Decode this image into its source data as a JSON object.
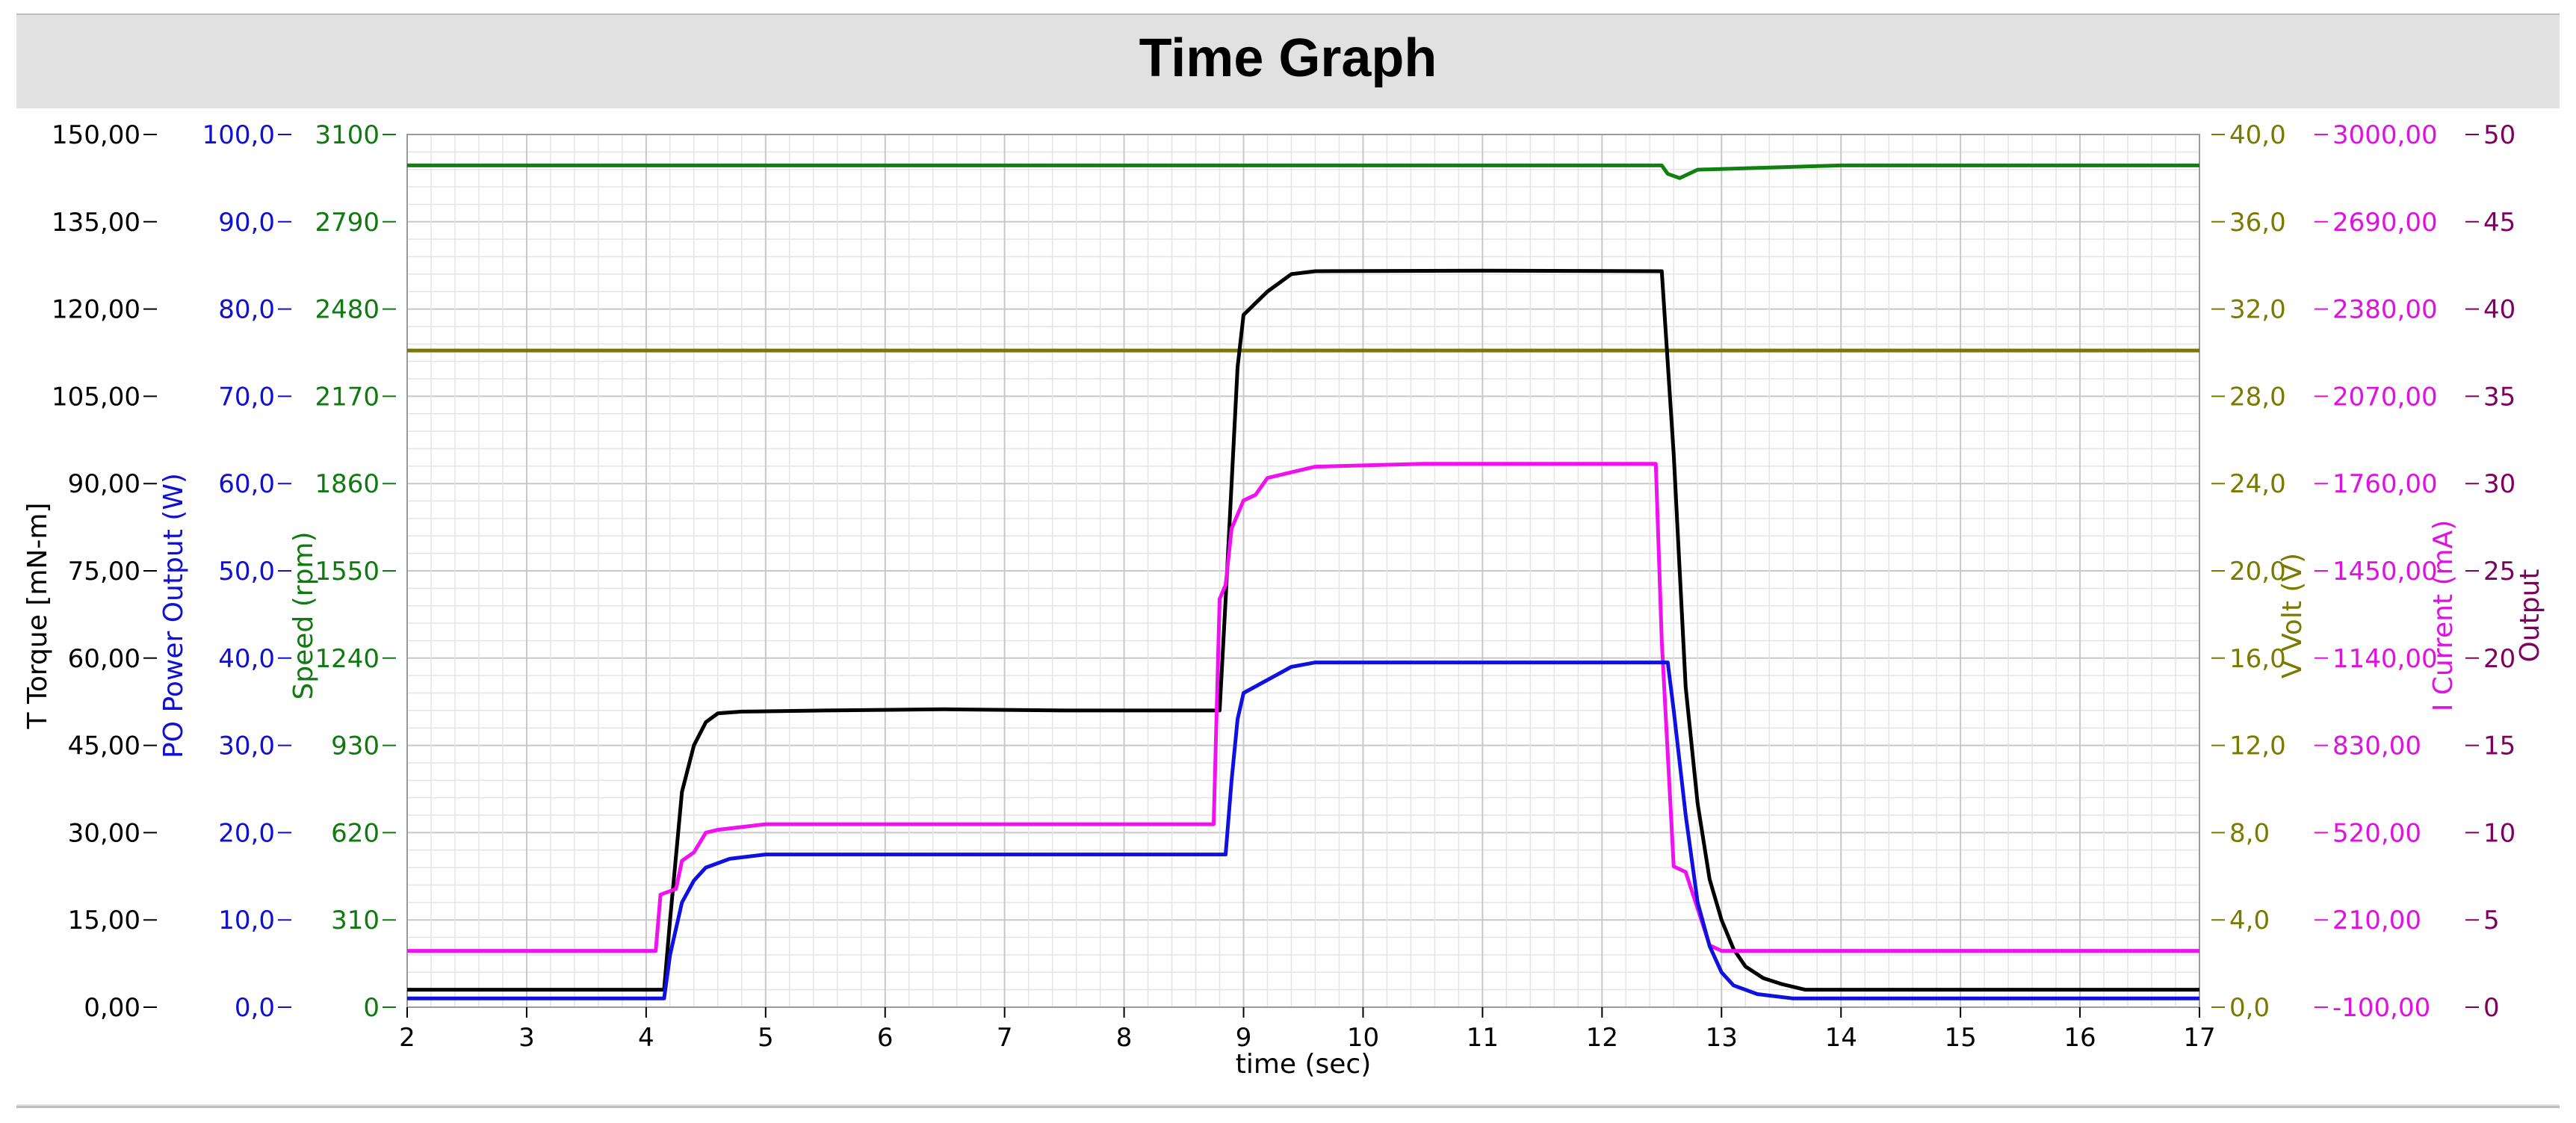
{
  "window": {
    "title": "Time Graph"
  },
  "chart_data": {
    "type": "line",
    "title": "Time Graph",
    "xlabel": "time (sec)",
    "xlim": [
      2,
      17
    ],
    "x_ticks": [
      "2",
      "3",
      "4",
      "5",
      "6",
      "7",
      "8",
      "9",
      "10",
      "11",
      "12",
      "13",
      "14",
      "15",
      "16",
      "17"
    ],
    "grid": true,
    "axes": [
      {
        "id": "torque",
        "label": "T  Torque [mN-m]",
        "side": "left",
        "color": "#000000",
        "ylim": [
          0,
          150
        ],
        "ticks": [
          "0,00",
          "15,00",
          "30,00",
          "45,00",
          "60,00",
          "75,00",
          "90,00",
          "105,00",
          "120,00",
          "135,00",
          "150,00"
        ]
      },
      {
        "id": "power",
        "label": "PO Power Output (W)",
        "side": "left",
        "color": "#1010d0",
        "ylim": [
          0,
          100
        ],
        "ticks": [
          "0,0",
          "10,0",
          "20,0",
          "30,0",
          "40,0",
          "50,0",
          "60,0",
          "70,0",
          "80,0",
          "90,0",
          "100,0"
        ]
      },
      {
        "id": "speed",
        "label": "Speed  (rpm)",
        "side": "left",
        "color": "#107a10",
        "ylim": [
          0,
          3100
        ],
        "ticks": [
          "0",
          "310",
          "620",
          "930",
          "1240",
          "1550",
          "1860",
          "2170",
          "2480",
          "2790",
          "3100"
        ]
      },
      {
        "id": "volt",
        "label": "V Volt (V)",
        "side": "right",
        "color": "#7a7a00",
        "ylim": [
          0,
          40
        ],
        "ticks": [
          "0,0",
          "4,0",
          "8,0",
          "12,0",
          "16,0",
          "20,0",
          "24,0",
          "28,0",
          "32,0",
          "36,0",
          "40,0"
        ]
      },
      {
        "id": "current",
        "label": "I Current (mA)",
        "side": "right",
        "color": "#e010e0",
        "ylim": [
          -100,
          3000
        ],
        "ticks": [
          "-100,00",
          "210,00",
          "520,00",
          "830,00",
          "1140,00",
          "1450,00",
          "1760,00",
          "2070,00",
          "2380,00",
          "2690,00",
          "3000,00"
        ]
      },
      {
        "id": "output",
        "label": "Output",
        "side": "right",
        "color": "#800060",
        "ylim": [
          0,
          50
        ],
        "ticks": [
          "0",
          "5",
          "10",
          "15",
          "20",
          "25",
          "30",
          "35",
          "40",
          "45",
          "50"
        ]
      }
    ],
    "series": [
      {
        "axis": "speed",
        "color": "#108010",
        "points": [
          [
            2,
            2990
          ],
          [
            9,
            2990
          ],
          [
            12.5,
            2990
          ],
          [
            12.55,
            2960
          ],
          [
            12.65,
            2945
          ],
          [
            12.8,
            2975
          ],
          [
            14,
            2990
          ],
          [
            17,
            2990
          ]
        ]
      },
      {
        "axis": "volt",
        "color": "#7a7a00",
        "points": [
          [
            2,
            30.1
          ],
          [
            17,
            30.1
          ]
        ]
      },
      {
        "axis": "torque",
        "color": "#000000",
        "points": [
          [
            2,
            3
          ],
          [
            4.15,
            3
          ],
          [
            4.2,
            15
          ],
          [
            4.3,
            37
          ],
          [
            4.4,
            45
          ],
          [
            4.5,
            49
          ],
          [
            4.6,
            50.5
          ],
          [
            4.8,
            50.8
          ],
          [
            5.5,
            51
          ],
          [
            6.5,
            51.2
          ],
          [
            7.5,
            51
          ],
          [
            8.8,
            51
          ],
          [
            8.85,
            70
          ],
          [
            8.9,
            90
          ],
          [
            8.95,
            110
          ],
          [
            9.0,
            119
          ],
          [
            9.2,
            123
          ],
          [
            9.4,
            126
          ],
          [
            9.6,
            126.5
          ],
          [
            11,
            126.6
          ],
          [
            12.5,
            126.5
          ],
          [
            12.6,
            95
          ],
          [
            12.7,
            55
          ],
          [
            12.8,
            35
          ],
          [
            12.9,
            22
          ],
          [
            13.0,
            15
          ],
          [
            13.1,
            10
          ],
          [
            13.2,
            7
          ],
          [
            13.35,
            5
          ],
          [
            13.5,
            4
          ],
          [
            13.7,
            3
          ],
          [
            17,
            3
          ]
        ]
      },
      {
        "axis": "current",
        "color": "#f010f0",
        "points": [
          [
            2,
            100
          ],
          [
            4.08,
            100
          ],
          [
            4.12,
            300
          ],
          [
            4.25,
            320
          ],
          [
            4.3,
            420
          ],
          [
            4.4,
            450
          ],
          [
            4.5,
            520
          ],
          [
            4.6,
            530
          ],
          [
            4.8,
            540
          ],
          [
            5.0,
            550
          ],
          [
            6,
            550
          ],
          [
            7,
            550
          ],
          [
            8.75,
            550
          ],
          [
            8.8,
            1350
          ],
          [
            8.85,
            1400
          ],
          [
            8.9,
            1600
          ],
          [
            9.0,
            1700
          ],
          [
            9.1,
            1720
          ],
          [
            9.2,
            1780
          ],
          [
            9.4,
            1800
          ],
          [
            9.6,
            1820
          ],
          [
            10.5,
            1830
          ],
          [
            12.45,
            1830
          ],
          [
            12.5,
            1200
          ],
          [
            12.6,
            400
          ],
          [
            12.7,
            380
          ],
          [
            12.8,
            250
          ],
          [
            12.9,
            120
          ],
          [
            13.0,
            100
          ],
          [
            17,
            100
          ]
        ]
      },
      {
        "axis": "power",
        "color": "#1010e0",
        "points": [
          [
            2,
            1
          ],
          [
            4.15,
            1
          ],
          [
            4.2,
            6
          ],
          [
            4.3,
            12
          ],
          [
            4.4,
            14.5
          ],
          [
            4.5,
            16
          ],
          [
            4.7,
            17
          ],
          [
            5.0,
            17.5
          ],
          [
            6,
            17.5
          ],
          [
            7,
            17.5
          ],
          [
            8.85,
            17.5
          ],
          [
            8.9,
            26
          ],
          [
            8.95,
            33
          ],
          [
            9.0,
            36
          ],
          [
            9.2,
            37.5
          ],
          [
            9.4,
            39
          ],
          [
            9.6,
            39.5
          ],
          [
            10.5,
            39.5
          ],
          [
            12.55,
            39.5
          ],
          [
            12.6,
            34
          ],
          [
            12.7,
            22
          ],
          [
            12.8,
            12
          ],
          [
            12.9,
            7
          ],
          [
            13.0,
            4
          ],
          [
            13.1,
            2.5
          ],
          [
            13.3,
            1.5
          ],
          [
            13.6,
            1
          ],
          [
            17,
            1
          ]
        ]
      }
    ]
  }
}
